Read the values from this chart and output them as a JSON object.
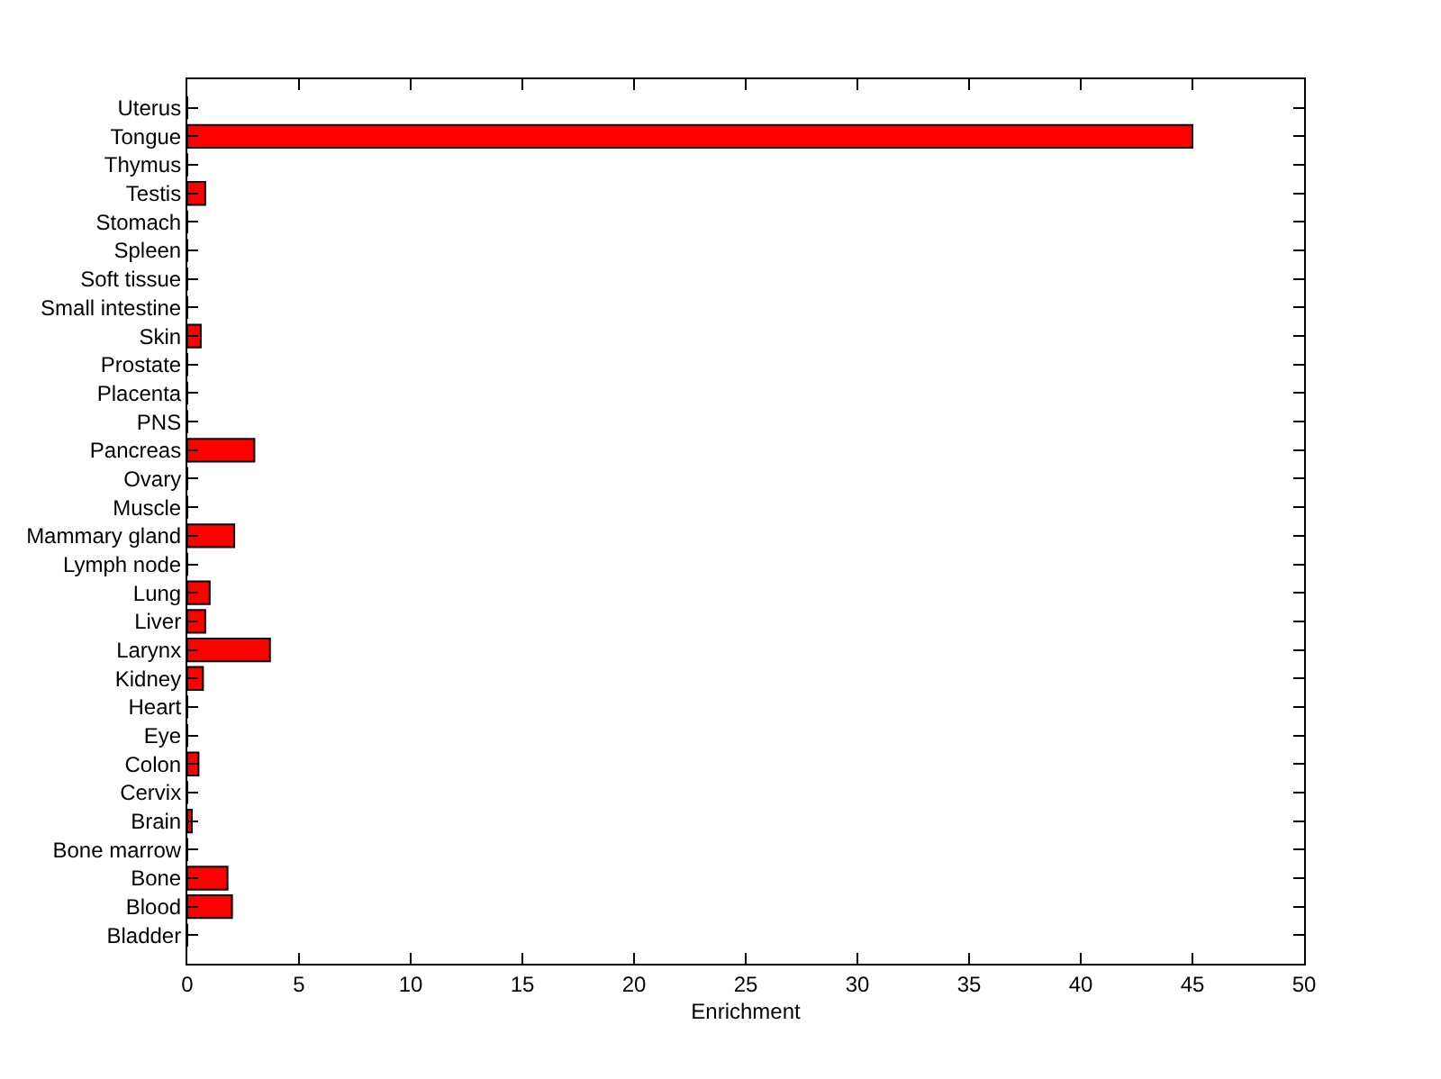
{
  "chart_data": {
    "type": "bar",
    "orientation": "horizontal",
    "xlabel": "Enrichment",
    "categories": [
      "Uterus",
      "Tongue",
      "Thymus",
      "Testis",
      "Stomach",
      "Spleen",
      "Soft tissue",
      "Small intestine",
      "Skin",
      "Prostate",
      "Placenta",
      "PNS",
      "Pancreas",
      "Ovary",
      "Muscle",
      "Mammary gland",
      "Lymph node",
      "Lung",
      "Liver",
      "Larynx",
      "Kidney",
      "Heart",
      "Eye",
      "Colon",
      "Cervix",
      "Brain",
      "Bone marrow",
      "Bone",
      "Blood",
      "Bladder"
    ],
    "values": [
      0,
      45,
      0,
      0.8,
      0,
      0,
      0,
      0,
      0.6,
      0,
      0,
      0,
      3.0,
      0,
      0,
      2.1,
      0,
      1.0,
      0.8,
      3.7,
      0.7,
      0,
      0,
      0.5,
      0,
      0.2,
      0,
      1.8,
      2.0,
      0
    ],
    "color": "#ff0000",
    "xlim": [
      0,
      50
    ],
    "xticks": [
      0,
      5,
      10,
      15,
      20,
      25,
      30,
      35,
      40,
      45,
      50
    ]
  }
}
